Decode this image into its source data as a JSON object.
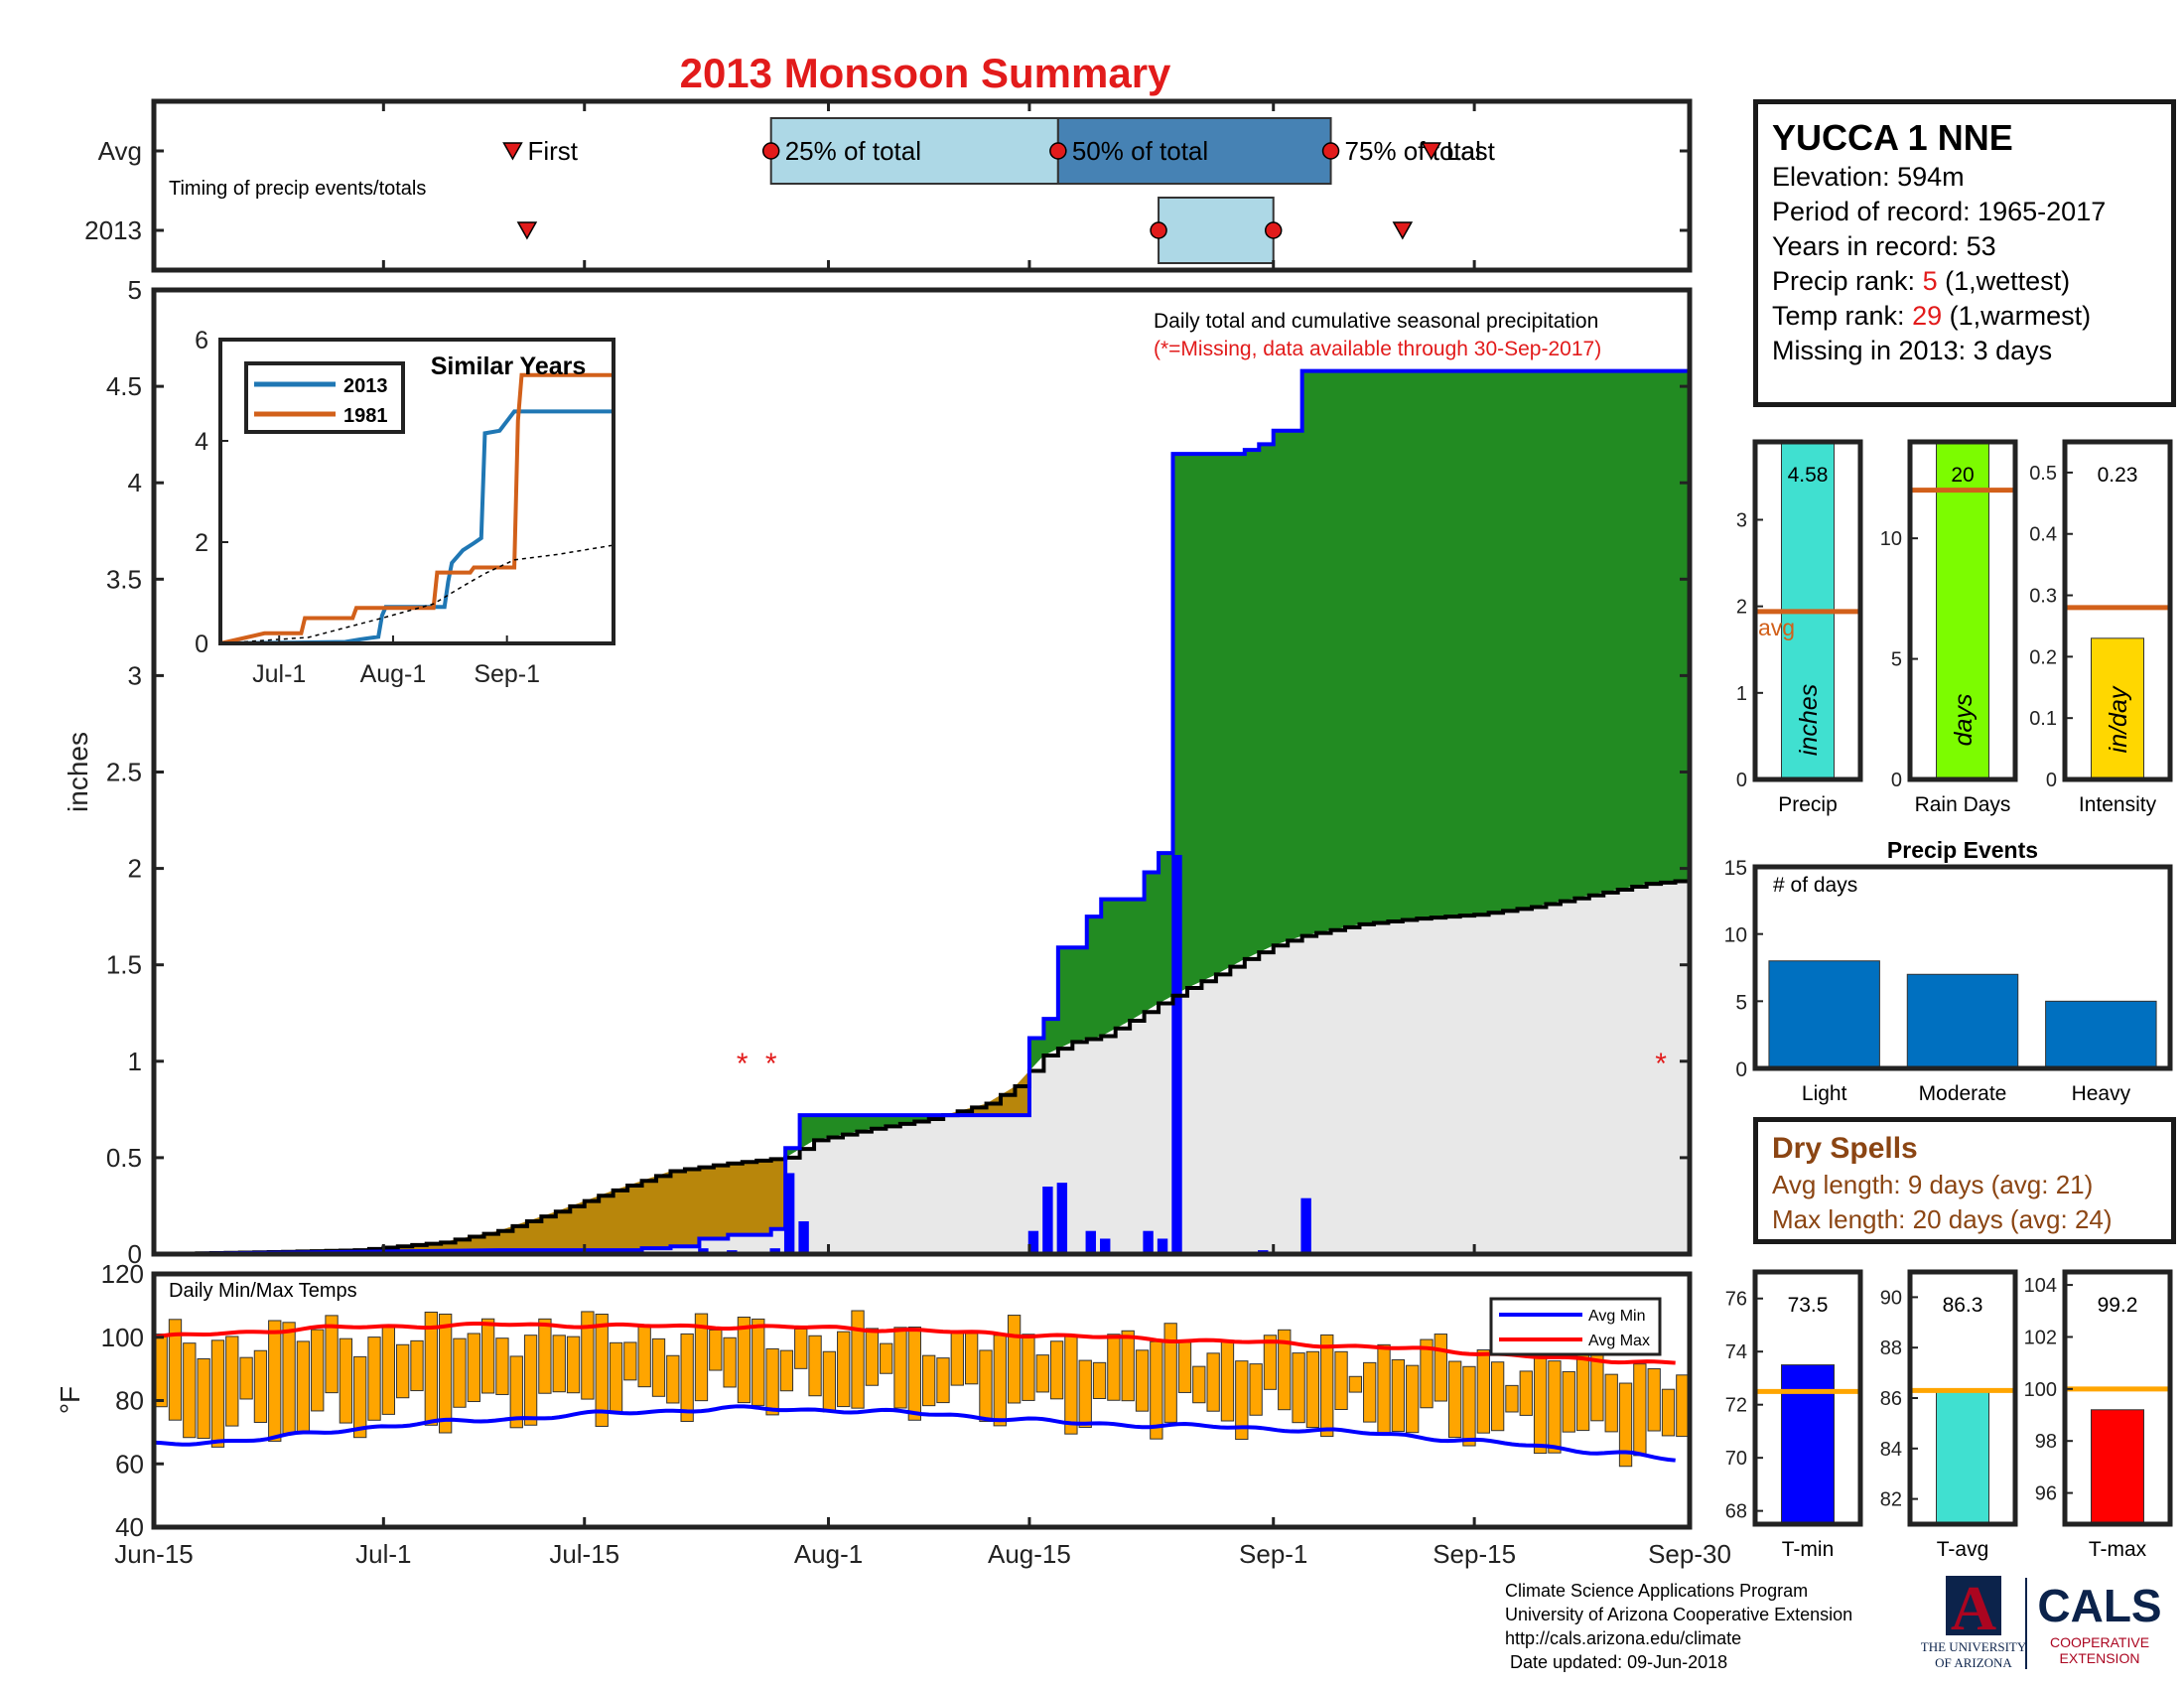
{
  "title": "2013 Monsoon Summary",
  "timing": {
    "row_labels": [
      "Avg",
      "2013"
    ],
    "subtitle": "Timing of precip events/totals",
    "avg": {
      "first": "Jul-10",
      "q25": "Jul-28",
      "q50": "Aug-17",
      "q75": "Sep-5",
      "last": "Sep-12"
    },
    "y2013": {
      "first": "Jul-11",
      "q25": "Aug-24",
      "q50": "Sep-1",
      "q75": "Sep-1",
      "last": "Sep-10"
    },
    "labels": {
      "first": "First",
      "q25": "25% of total",
      "q50": "50% of total",
      "q75": "75% of total",
      "last": "Last"
    }
  },
  "station": {
    "name": "YUCCA 1 NNE",
    "elevation_label": "Elevation: 594m",
    "period_label": "Period of record: 1965-2017",
    "years_label": "Years in record: 53",
    "precip_rank_prefix": "Precip rank: ",
    "precip_rank": "5",
    "precip_rank_suffix": " (1,wettest)",
    "temp_rank_prefix": "Temp rank: ",
    "temp_rank": "29",
    "temp_rank_suffix": " (1,warmest)",
    "missing_label": "Missing in 2013: 3 days"
  },
  "chart_data": [
    {
      "id": "main-precip",
      "type": "area",
      "annotation_title": "Daily total and cumulative seasonal precipitation",
      "annotation_note": "(*=Missing, data available through 30-Sep-2017)",
      "ylabel": "inches",
      "ylim": [
        0,
        5
      ],
      "yticks": [
        0,
        0.5,
        1,
        1.5,
        2,
        2.5,
        3,
        3.5,
        4,
        4.5,
        5
      ],
      "xlim": [
        "Jun-15",
        "Sep-30"
      ],
      "xticks": [
        "Jun-15",
        "Jul-1",
        "Jul-15",
        "Aug-1",
        "Aug-15",
        "Sep-1",
        "Sep-15",
        "Sep-30"
      ],
      "cumulative_2013": [
        [
          0,
          0
        ],
        [
          24,
          0.02
        ],
        [
          34,
          0.02
        ],
        [
          34,
          0.03
        ],
        [
          36,
          0.03
        ],
        [
          36,
          0.04
        ],
        [
          38,
          0.04
        ],
        [
          38,
          0.08
        ],
        [
          40,
          0.08
        ],
        [
          40,
          0.1
        ],
        [
          43,
          0.1
        ],
        [
          43,
          0.13
        ],
        [
          44,
          0.13
        ],
        [
          44,
          0.55
        ],
        [
          45,
          0.55
        ],
        [
          45,
          0.72
        ],
        [
          61,
          0.72
        ],
        [
          61,
          1.12
        ],
        [
          62,
          1.12
        ],
        [
          62,
          1.22
        ],
        [
          63,
          1.22
        ],
        [
          63,
          1.59
        ],
        [
          65,
          1.59
        ],
        [
          65,
          1.75
        ],
        [
          66,
          1.75
        ],
        [
          66,
          1.84
        ],
        [
          69,
          1.84
        ],
        [
          69,
          1.98
        ],
        [
          70,
          1.98
        ],
        [
          70,
          2.08
        ],
        [
          71,
          2.08
        ],
        [
          71,
          4.15
        ],
        [
          76,
          4.15
        ],
        [
          76,
          4.17
        ],
        [
          77,
          4.17
        ],
        [
          77,
          4.2
        ],
        [
          78,
          4.2
        ],
        [
          78,
          4.27
        ],
        [
          80,
          4.27
        ],
        [
          80,
          4.58
        ],
        [
          107,
          4.58
        ]
      ],
      "cumulative_avg": [
        [
          0,
          0
        ],
        [
          8,
          0.01
        ],
        [
          14,
          0.02
        ],
        [
          20,
          0.06
        ],
        [
          24,
          0.12
        ],
        [
          28,
          0.22
        ],
        [
          32,
          0.33
        ],
        [
          36,
          0.43
        ],
        [
          40,
          0.47
        ],
        [
          44,
          0.5
        ],
        [
          46,
          0.59
        ],
        [
          50,
          0.65
        ],
        [
          54,
          0.7
        ],
        [
          58,
          0.78
        ],
        [
          60,
          0.87
        ],
        [
          62,
          1.03
        ],
        [
          64,
          1.1
        ],
        [
          66,
          1.13
        ],
        [
          68,
          1.21
        ],
        [
          70,
          1.3
        ],
        [
          72,
          1.38
        ],
        [
          74,
          1.45
        ],
        [
          76,
          1.53
        ],
        [
          78,
          1.6
        ],
        [
          80,
          1.65
        ],
        [
          84,
          1.71
        ],
        [
          88,
          1.74
        ],
        [
          92,
          1.76
        ],
        [
          96,
          1.8
        ],
        [
          100,
          1.86
        ],
        [
          104,
          1.92
        ],
        [
          107,
          1.94
        ]
      ],
      "daily_2013": [
        [
          34,
          0.01
        ],
        [
          36,
          0.01
        ],
        [
          38,
          0.03
        ],
        [
          40,
          0.02
        ],
        [
          43,
          0.03
        ],
        [
          44,
          0.42
        ],
        [
          45,
          0.17
        ],
        [
          61,
          0.12
        ],
        [
          62,
          0.35
        ],
        [
          63,
          0.37
        ],
        [
          65,
          0.12
        ],
        [
          66,
          0.08
        ],
        [
          69,
          0.12
        ],
        [
          70,
          0.08
        ],
        [
          71,
          2.07
        ],
        [
          77,
          0.02
        ],
        [
          78,
          0.01
        ],
        [
          80,
          0.29
        ]
      ],
      "missing_days": [
        41,
        43,
        105
      ],
      "missing_marker": "*",
      "colors": {
        "above_avg": "#228b22",
        "below_avg": "#b8860b",
        "avg_fill": "#e8e8e8",
        "cum_line": "#0000ff",
        "avg_line": "#000000",
        "daily_bar": "#0000ff",
        "missing": "#e21b1b"
      }
    },
    {
      "id": "similar-years",
      "type": "line",
      "title": "Similar Years",
      "ylim": [
        0,
        6
      ],
      "yticks": [
        0,
        2,
        4,
        6
      ],
      "xticks": [
        "Jul-1",
        "Aug-1",
        "Sep-1"
      ],
      "series": [
        {
          "name": "2013",
          "color": "#1f77b4",
          "points": [
            [
              0,
              0
            ],
            [
              24,
              0.02
            ],
            [
              34,
              0.03
            ],
            [
              38,
              0.08
            ],
            [
              43,
              0.13
            ],
            [
              44,
              0.55
            ],
            [
              45,
              0.72
            ],
            [
              61,
              0.72
            ],
            [
              62,
              1.22
            ],
            [
              63,
              1.59
            ],
            [
              66,
              1.84
            ],
            [
              69,
              1.98
            ],
            [
              71,
              2.08
            ],
            [
              72,
              4.15
            ],
            [
              76,
              4.2
            ],
            [
              80,
              4.58
            ],
            [
              107,
              4.58
            ]
          ]
        },
        {
          "name": "1981",
          "color": "#d2601a",
          "points": [
            [
              0,
              0
            ],
            [
              12,
              0.2
            ],
            [
              22,
              0.2
            ],
            [
              23,
              0.5
            ],
            [
              36,
              0.5
            ],
            [
              37,
              0.7
            ],
            [
              58,
              0.7
            ],
            [
              59,
              1.4
            ],
            [
              68,
              1.4
            ],
            [
              69,
              1.5
            ],
            [
              80,
              1.5
            ],
            [
              81,
              4.4
            ],
            [
              82,
              5.3
            ],
            [
              107,
              5.3
            ]
          ]
        },
        {
          "name": "avg",
          "color": "#000000",
          "dashed": true,
          "points": [
            [
              0,
              0
            ],
            [
              24,
              0.12
            ],
            [
              44,
              0.5
            ],
            [
              58,
              0.78
            ],
            [
              66,
              1.13
            ],
            [
              72,
              1.38
            ],
            [
              80,
              1.65
            ],
            [
              92,
              1.76
            ],
            [
              107,
              1.94
            ]
          ]
        }
      ]
    },
    {
      "id": "temps",
      "type": "bar",
      "title": "Daily Min/Max Temps",
      "ylabel": "°F",
      "ylim": [
        40,
        120
      ],
      "yticks": [
        40,
        60,
        80,
        100,
        120
      ],
      "legend": [
        "Avg Min",
        "Avg Max"
      ],
      "colors": {
        "bar": "#ffa500",
        "avg_min": "#0000ff",
        "avg_max": "#ff0000"
      },
      "avg_min_anchors": [
        [
          0,
          66
        ],
        [
          8,
          68
        ],
        [
          16,
          72
        ],
        [
          24,
          74
        ],
        [
          32,
          76
        ],
        [
          40,
          77.5
        ],
        [
          48,
          77
        ],
        [
          56,
          75.5
        ],
        [
          64,
          73
        ],
        [
          72,
          72
        ],
        [
          80,
          71
        ],
        [
          88,
          69
        ],
        [
          96,
          66
        ],
        [
          104,
          63
        ],
        [
          107,
          61
        ]
      ],
      "avg_max_anchors": [
        [
          0,
          100
        ],
        [
          12,
          103
        ],
        [
          24,
          104
        ],
        [
          36,
          103.5
        ],
        [
          48,
          103
        ],
        [
          60,
          101
        ],
        [
          70,
          99.5
        ],
        [
          80,
          98
        ],
        [
          90,
          96
        ],
        [
          100,
          93
        ],
        [
          107,
          92
        ]
      ]
    },
    {
      "id": "precip-total",
      "type": "bar",
      "xlabel": "Precip",
      "bar_label": "inches",
      "value": 4.58,
      "value_label": "4.58",
      "avg": 1.94,
      "avg_label": "avg",
      "ylim": [
        0,
        3.9
      ],
      "yticks": [
        0,
        1,
        2,
        3
      ],
      "color": "#40e0d0"
    },
    {
      "id": "rain-days",
      "type": "bar",
      "xlabel": "Rain Days",
      "bar_label": "days",
      "value": 20,
      "value_label": "20",
      "avg": 12,
      "ylim": [
        0,
        14
      ],
      "yticks": [
        0,
        5,
        10
      ],
      "color": "#7cfc00"
    },
    {
      "id": "intensity",
      "type": "bar",
      "xlabel": "Intensity",
      "bar_label": "in/day",
      "value": 0.23,
      "value_label": "0.23",
      "avg": 0.28,
      "ylim": [
        0,
        0.55
      ],
      "yticks": [
        0,
        0.1,
        0.2,
        0.3,
        0.4,
        0.5
      ],
      "color": "#ffd700"
    },
    {
      "id": "precip-events",
      "type": "bar",
      "title": "Precip Events",
      "annotation": "# of days",
      "categories": [
        "Light",
        "Moderate",
        "Heavy"
      ],
      "values": [
        8,
        7,
        5
      ],
      "ylim": [
        0,
        15
      ],
      "yticks": [
        0,
        5,
        10,
        15
      ],
      "color": "#0070c0"
    },
    {
      "id": "t-min",
      "type": "bar",
      "xlabel": "T-min",
      "value": 73.5,
      "value_label": "73.5",
      "avg": 72.5,
      "ylim": [
        67.5,
        77
      ],
      "yticks": [
        68,
        70,
        72,
        74,
        76
      ],
      "color": "#0000ff"
    },
    {
      "id": "t-avg",
      "type": "bar",
      "xlabel": "T-avg",
      "value": 86.3,
      "value_label": "86.3",
      "avg": 86.3,
      "ylim": [
        81,
        91
      ],
      "yticks": [
        82,
        84,
        86,
        88,
        90
      ],
      "color": "#40e0d0"
    },
    {
      "id": "t-max",
      "type": "bar",
      "xlabel": "T-max",
      "value": 99.2,
      "value_label": "99.2",
      "avg": 100,
      "ylim": [
        94.8,
        104.5
      ],
      "yticks": [
        96,
        98,
        100,
        102,
        104
      ],
      "color": "#ff0000"
    }
  ],
  "dry_spells": {
    "title": "Dry Spells",
    "avg_line": "Avg length: 9 days (avg: 21)",
    "max_line": "Max length: 20 days (avg: 24)"
  },
  "credits": {
    "line1": "Climate Science Applications Program",
    "line2": "University of Arizona Cooperative Extension",
    "line3": "http://cals.arizona.edu/climate",
    "line4": " Date updated: 09-Jun-2018"
  },
  "logo": {
    "letter": "A",
    "university_line1": "THE UNIVERSITY",
    "university_line2": "OF ARIZONA",
    "cals": "CALS",
    "coop_line1": "COOPERATIVE",
    "coop_line2": "EXTENSION",
    "navy": "#0c234b",
    "red": "#ab0520"
  }
}
